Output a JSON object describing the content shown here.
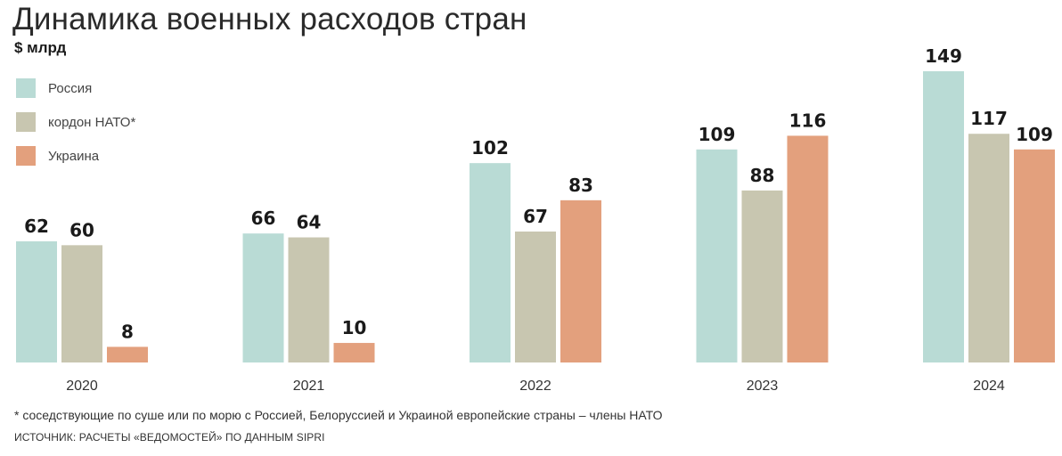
{
  "chart_data": {
    "type": "bar",
    "title": "Динамика военных расходов стран",
    "unit_label": "$ млрд",
    "categories": [
      "2020",
      "2021",
      "2022",
      "2023",
      "2024"
    ],
    "series": [
      {
        "name": "Россия",
        "color": "#b9dbd5",
        "values": [
          62,
          66,
          102,
          109,
          149
        ]
      },
      {
        "name": "кордон НАТО*",
        "color": "#c8c6b0",
        "values": [
          60,
          64,
          67,
          88,
          117
        ]
      },
      {
        "name": "Украина",
        "color": "#e3a07d",
        "values": [
          8,
          10,
          83,
          116,
          109
        ]
      }
    ],
    "ylim": [
      0,
      149
    ],
    "grid": false,
    "legend_position": "top-left",
    "data_labels": true
  },
  "footnote": "* соседствующие по суше или по морю с Россией, Белоруссией и Украиной европейские страны – члены НАТО",
  "source": "ИСТОЧНИК: РАСЧЕТЫ «ВЕДОМОСТЕЙ» ПО ДАННЫМ SIPRI"
}
